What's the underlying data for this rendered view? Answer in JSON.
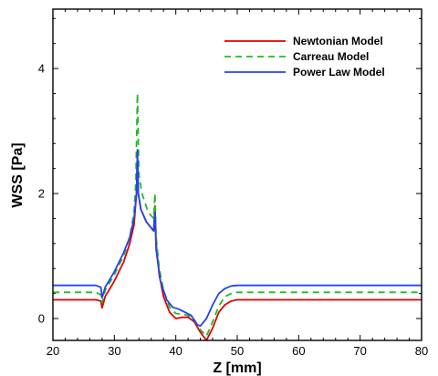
{
  "chart_data": {
    "type": "line",
    "title": "",
    "xlabel": "Z [mm]",
    "ylabel": "WSS [Pa]",
    "xlim": [
      20,
      80
    ],
    "ylim": [
      -0.35,
      4.95
    ],
    "x_ticks": [
      20,
      30,
      40,
      50,
      60,
      70,
      80
    ],
    "y_ticks": [
      0,
      2,
      4
    ],
    "grid": false,
    "legend": "top-right",
    "series": [
      {
        "name": "Newtonian Model",
        "color": "#e00000",
        "dash": "solid",
        "points": [
          [
            20,
            0.3
          ],
          [
            27,
            0.3
          ],
          [
            27.8,
            0.28
          ],
          [
            28,
            0.17
          ],
          [
            28.5,
            0.35
          ],
          [
            30,
            0.6
          ],
          [
            31.5,
            0.9
          ],
          [
            32.5,
            1.2
          ],
          [
            33.2,
            1.5
          ],
          [
            33.6,
            2.0
          ],
          [
            33.75,
            2.6
          ],
          [
            33.9,
            2.0
          ],
          [
            34.3,
            1.75
          ],
          [
            35.2,
            1.55
          ],
          [
            36.4,
            1.4
          ],
          [
            36.6,
            1.8
          ],
          [
            36.8,
            1.2
          ],
          [
            37.3,
            0.7
          ],
          [
            38,
            0.35
          ],
          [
            39,
            0.1
          ],
          [
            40,
            0.0
          ],
          [
            41,
            0.02
          ],
          [
            42,
            0.02
          ],
          [
            43,
            -0.05
          ],
          [
            44,
            -0.22
          ],
          [
            45,
            -0.35
          ],
          [
            46,
            -0.15
          ],
          [
            47,
            0.1
          ],
          [
            48,
            0.22
          ],
          [
            49,
            0.28
          ],
          [
            50,
            0.3
          ],
          [
            80,
            0.3
          ]
        ]
      },
      {
        "name": "Carreau Model",
        "color": "#22bb22",
        "dash": "dashed",
        "points": [
          [
            20,
            0.42
          ],
          [
            27,
            0.42
          ],
          [
            27.8,
            0.38
          ],
          [
            28,
            0.25
          ],
          [
            28.5,
            0.45
          ],
          [
            30,
            0.7
          ],
          [
            31.5,
            1.0
          ],
          [
            32.5,
            1.3
          ],
          [
            33.2,
            1.7
          ],
          [
            33.5,
            2.2
          ],
          [
            33.75,
            3.6
          ],
          [
            34,
            2.3
          ],
          [
            34.5,
            2.0
          ],
          [
            35.5,
            1.7
          ],
          [
            36.4,
            1.6
          ],
          [
            36.6,
            2.0
          ],
          [
            36.8,
            1.3
          ],
          [
            37.3,
            0.8
          ],
          [
            38,
            0.45
          ],
          [
            39,
            0.18
          ],
          [
            40,
            0.08
          ],
          [
            41,
            0.07
          ],
          [
            42,
            0.05
          ],
          [
            43,
            -0.02
          ],
          [
            44,
            -0.18
          ],
          [
            45,
            -0.28
          ],
          [
            46,
            -0.05
          ],
          [
            47,
            0.2
          ],
          [
            48,
            0.35
          ],
          [
            49,
            0.4
          ],
          [
            50,
            0.42
          ],
          [
            80,
            0.42
          ]
        ]
      },
      {
        "name": "Power Law Model",
        "color": "#2244ee",
        "dash": "solid",
        "points": [
          [
            20,
            0.53
          ],
          [
            27,
            0.53
          ],
          [
            27.8,
            0.5
          ],
          [
            28,
            0.33
          ],
          [
            28.5,
            0.5
          ],
          [
            30,
            0.75
          ],
          [
            31.5,
            1.05
          ],
          [
            32.5,
            1.3
          ],
          [
            33.2,
            1.6
          ],
          [
            33.6,
            2.0
          ],
          [
            33.75,
            2.7
          ],
          [
            33.9,
            2.0
          ],
          [
            34.3,
            1.75
          ],
          [
            35.2,
            1.55
          ],
          [
            36.4,
            1.4
          ],
          [
            36.6,
            1.7
          ],
          [
            36.8,
            1.1
          ],
          [
            37.5,
            0.6
          ],
          [
            38.5,
            0.3
          ],
          [
            39.5,
            0.18
          ],
          [
            40.5,
            0.15
          ],
          [
            41.5,
            0.1
          ],
          [
            42.5,
            0.05
          ],
          [
            43.5,
            -0.1
          ],
          [
            44,
            -0.12
          ],
          [
            45,
            0.0
          ],
          [
            46,
            0.22
          ],
          [
            47,
            0.4
          ],
          [
            48,
            0.48
          ],
          [
            49,
            0.52
          ],
          [
            50,
            0.53
          ],
          [
            80,
            0.53
          ]
        ]
      }
    ]
  }
}
